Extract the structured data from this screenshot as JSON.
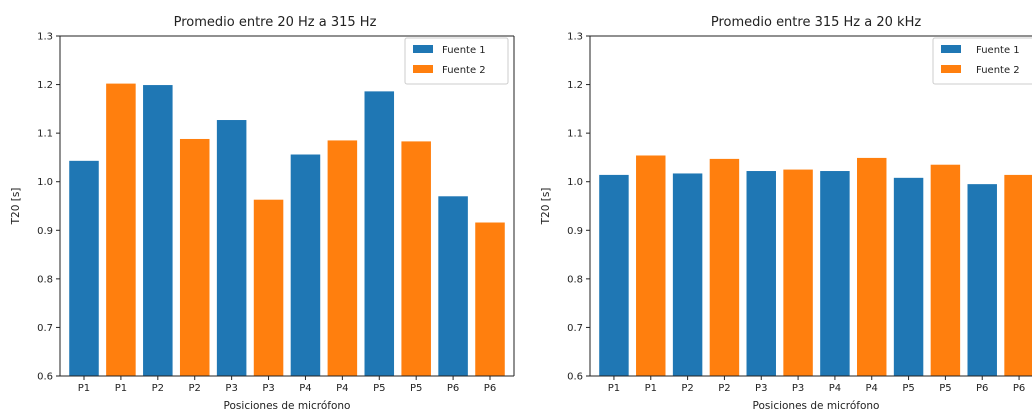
{
  "chart_data": [
    {
      "type": "bar",
      "title": "Promedio entre 20 Hz a 315 Hz",
      "xlabel": "Posiciones de micrófono",
      "ylabel": "T20 [s]",
      "ylim": [
        0.6,
        1.3
      ],
      "yticks": [
        "0.6",
        "0.7",
        "0.8",
        "0.9",
        "1.0",
        "1.1",
        "1.2",
        "1.3"
      ],
      "categories": [
        "P1",
        "P1",
        "P2",
        "P2",
        "P3",
        "P3",
        "P4",
        "P4",
        "P5",
        "P5",
        "P6",
        "P6"
      ],
      "bar_series": [
        0,
        1,
        0,
        1,
        0,
        1,
        0,
        1,
        0,
        1,
        0,
        1
      ],
      "values": [
        1.043,
        1.202,
        1.199,
        1.088,
        1.127,
        0.963,
        1.056,
        1.085,
        1.186,
        1.083,
        0.97,
        0.916
      ],
      "series": [
        {
          "name": "Fuente 1",
          "color": "#1f77b4"
        },
        {
          "name": "Fuente 2",
          "color": "#ff7f0e"
        }
      ],
      "legend_position": "top-right",
      "grid": false
    },
    {
      "type": "bar",
      "title": "Promedio entre 315 Hz a 20 kHz",
      "xlabel": "Posiciones de micrófono",
      "ylabel": "T20 [s]",
      "ylim": [
        0.6,
        1.3
      ],
      "yticks": [
        "0.6",
        "0.7",
        "0.8",
        "0.9",
        "1.0",
        "1.1",
        "1.2",
        "1.3"
      ],
      "categories": [
        "P1",
        "P1",
        "P2",
        "P2",
        "P3",
        "P3",
        "P4",
        "P4",
        "P5",
        "P5",
        "P6",
        "P6"
      ],
      "bar_series": [
        0,
        1,
        0,
        1,
        0,
        1,
        0,
        1,
        0,
        1,
        0,
        1
      ],
      "values": [
        1.014,
        1.054,
        1.017,
        1.047,
        1.022,
        1.025,
        1.022,
        1.049,
        1.008,
        1.035,
        0.995,
        1.014
      ],
      "series": [
        {
          "name": "Fuente 1",
          "color": "#1f77b4"
        },
        {
          "name": "Fuente 2",
          "color": "#ff7f0e"
        }
      ],
      "legend_position": "top-right",
      "grid": false
    }
  ]
}
